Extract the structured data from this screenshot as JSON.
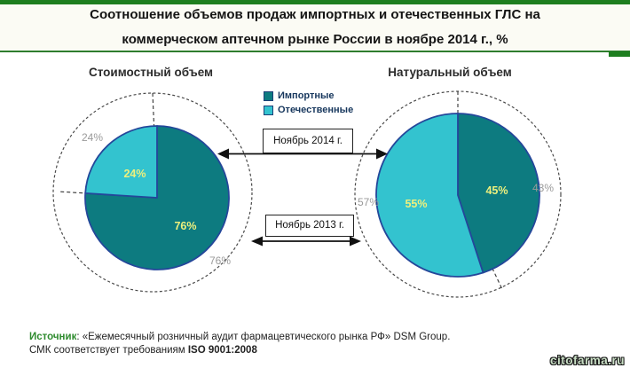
{
  "header": {
    "title_line1": "Соотношение объемов продаж импортных и отечественных ГЛС на",
    "title_line2": "коммерческом аптечном рынке России в ноябре 2014 г., %"
  },
  "chart_data": [
    {
      "type": "pie",
      "title": "Стоимостный объем",
      "categories": [
        "Импортные",
        "Отечественные"
      ],
      "series": [
        {
          "name": "Ноябрь 2014 г.",
          "style": "solid pie",
          "values": [
            76,
            24
          ],
          "labels": [
            "76%",
            "24%"
          ]
        },
        {
          "name": "Ноябрь 2013 г.",
          "style": "dashed outer ring",
          "values": [
            76,
            24
          ],
          "labels": [
            "76%",
            "24%"
          ]
        }
      ]
    },
    {
      "type": "pie",
      "title": "Натуральный объем",
      "categories": [
        "Импортные",
        "Отечественные"
      ],
      "series": [
        {
          "name": "Ноябрь 2014 г.",
          "style": "solid pie",
          "values": [
            45,
            55
          ],
          "labels": [
            "45%",
            "55%"
          ]
        },
        {
          "name": "Ноябрь 2013 г.",
          "style": "dashed outer ring",
          "values": [
            43,
            57
          ],
          "labels": [
            "43%",
            "57%"
          ]
        }
      ]
    }
  ],
  "source": {
    "label": "Источник",
    "line1_rest": ": «Ежемесячный розничный аудит фармацевтического рынка РФ» DSM Group.",
    "line2_prefix": "СМК соответствует требованиям ",
    "line2_bold": "ISO 9001:2008"
  },
  "watermark": "citofarma.ru",
  "colors": {
    "imported": "#0d7b80",
    "domestic": "#33c3cf",
    "accent_green": "#1e7e1f",
    "underline_green": "#2e7d2e",
    "pie_outline": "#24479a",
    "label_yellow": "#eef07d",
    "label_gray": "#9a9a9a"
  }
}
